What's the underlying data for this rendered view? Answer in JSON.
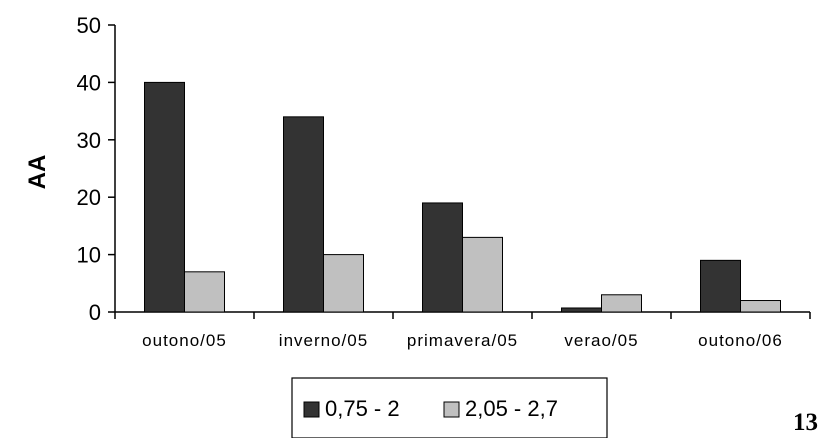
{
  "chart_data": {
    "type": "bar",
    "categories": [
      "outono/05",
      "inverno/05",
      "primavera/05",
      "verao/05",
      "outono/06"
    ],
    "series": [
      {
        "name": "0,75 - 2",
        "values": [
          40,
          34,
          19,
          0.7,
          9
        ],
        "color": "#333333"
      },
      {
        "name": "2,05 - 2,7",
        "values": [
          7,
          10,
          13,
          3,
          2
        ],
        "color": "#c0c0c0"
      }
    ],
    "title": "",
    "xlabel": "",
    "ylabel": "AA",
    "ylim": [
      0,
      50
    ],
    "yticks": [
      0,
      10,
      20,
      30,
      40,
      50
    ],
    "grid": false,
    "legend_position": "bottom"
  },
  "page_number": "13"
}
